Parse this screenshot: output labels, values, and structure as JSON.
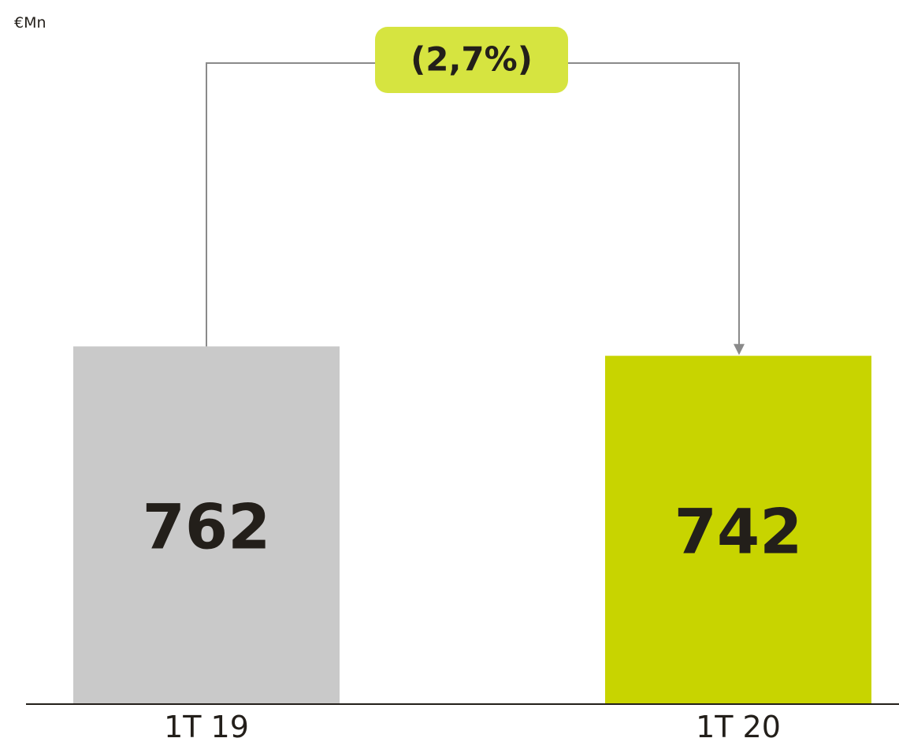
{
  "chart_data": {
    "type": "bar",
    "unit_label": "€Mn",
    "categories": [
      "1T 19",
      "1T 20"
    ],
    "values": [
      762,
      742
    ],
    "value_labels": [
      "762",
      "742"
    ],
    "change_label": "(2,7%)",
    "ylim": [
      0,
      1500
    ],
    "grid": false,
    "colors": {
      "bars": [
        "#c9c9c9",
        "#c8d400"
      ],
      "change_badge": "#d6e440",
      "connector": "#8a8a8a",
      "axis": "#231f1a",
      "text": "#231f1a"
    }
  }
}
